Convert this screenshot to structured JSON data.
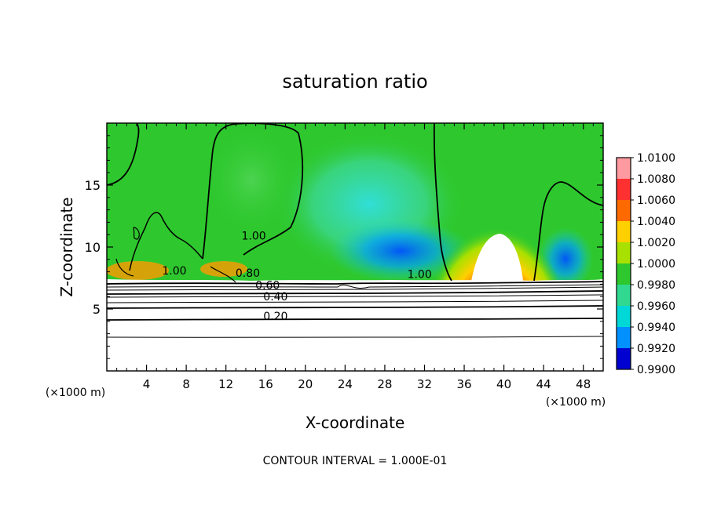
{
  "chart_data": {
    "type": "heatmap",
    "title": "saturation ratio",
    "xlabel": "X-coordinate",
    "ylabel": "Z-coordinate",
    "x_unit": "(×1000 m)",
    "x_unit_right": "(×1000 m)",
    "xlim": [
      0,
      50
    ],
    "ylim": [
      0,
      20
    ],
    "x_ticks": [
      4,
      8,
      12,
      16,
      20,
      24,
      28,
      32,
      36,
      40,
      44,
      48
    ],
    "y_ticks": [
      5,
      10,
      15
    ],
    "footer": "CONTOUR INTERVAL = 1.000E-01",
    "colorbar": {
      "levels": [
        "1.0100",
        "1.0080",
        "1.0060",
        "1.0040",
        "1.0020",
        "1.0000",
        "0.9980",
        "0.9960",
        "0.9940",
        "0.9920",
        "0.9900"
      ],
      "colors": [
        "#ff9aa0",
        "#ff3030",
        "#ff6a00",
        "#ffd000",
        "#a8e000",
        "#2ec82e",
        "#30d890",
        "#00d8d8",
        "#0090ff",
        "#0000d0",
        "#7000a0"
      ]
    },
    "contour_labels": [
      {
        "text": "1.00",
        "x": 14.8,
        "z": 10.6
      },
      {
        "text": "1.00",
        "x": 6.8,
        "z": 7.8
      },
      {
        "text": "0.80",
        "x": 14.2,
        "z": 7.6
      },
      {
        "text": "0.60",
        "x": 16.2,
        "z": 6.6
      },
      {
        "text": "0.40",
        "x": 17.0,
        "z": 5.7
      },
      {
        "text": "0.20",
        "x": 17.0,
        "z": 4.1
      },
      {
        "text": "1.00",
        "x": 31.5,
        "z": 7.5
      }
    ]
  }
}
